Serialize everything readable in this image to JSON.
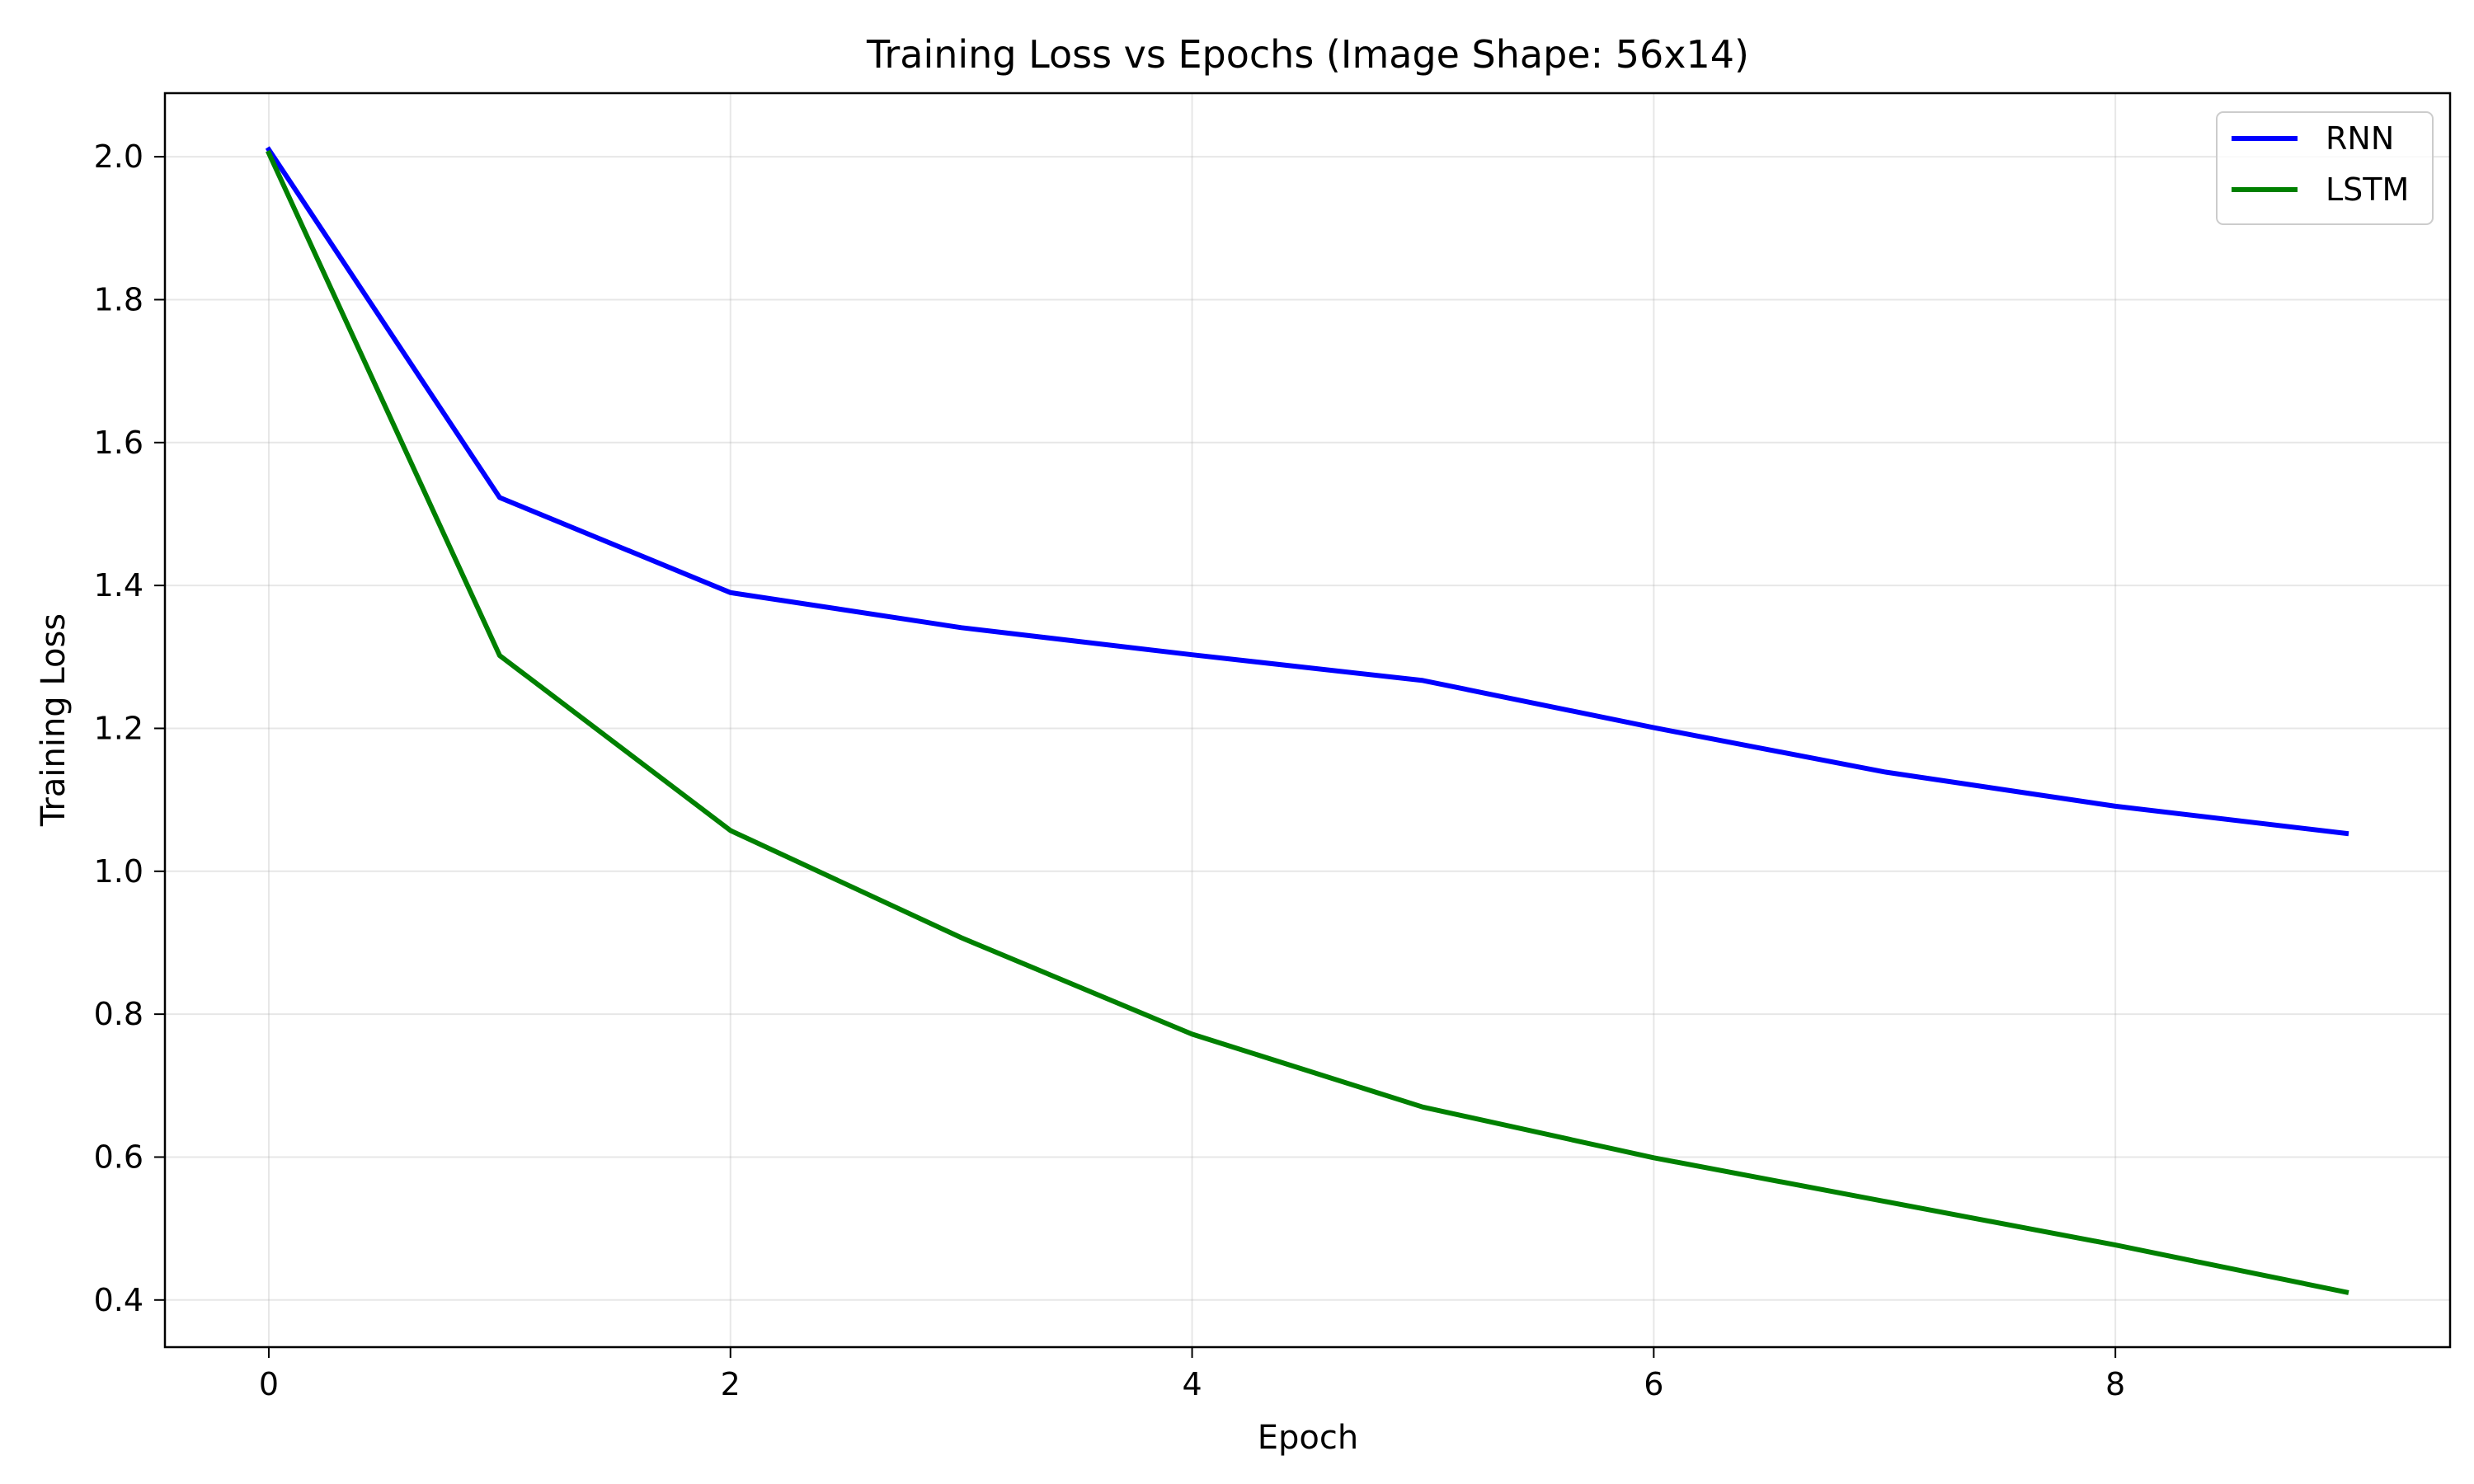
{
  "chart_data": {
    "type": "line",
    "title": "Training Loss vs Epochs (Image Shape: 56x14)",
    "xlabel": "Epoch",
    "ylabel": "Training Loss",
    "x": [
      0,
      1,
      2,
      3,
      4,
      5,
      6,
      7,
      8,
      9
    ],
    "series": [
      {
        "name": "RNN",
        "color": "#0000ff",
        "values": [
          2.01,
          1.523,
          1.39,
          1.341,
          1.303,
          1.267,
          1.201,
          1.139,
          1.091,
          1.053
        ]
      },
      {
        "name": "LSTM",
        "color": "#008000",
        "values": [
          2.005,
          1.302,
          1.057,
          0.907,
          0.772,
          0.67,
          0.599,
          0.538,
          0.477,
          0.411
        ]
      }
    ],
    "xlim": [
      -0.45,
      9.45
    ],
    "ylim": [
      0.334,
      2.089
    ],
    "xticks": [
      0,
      2,
      4,
      6,
      8
    ],
    "xtick_labels": [
      "0",
      "2",
      "4",
      "6",
      "8"
    ],
    "yticks": [
      0.4,
      0.6,
      0.8,
      1.0,
      1.2,
      1.4,
      1.6,
      1.8,
      2.0
    ],
    "ytick_labels": [
      "0.4",
      "0.6",
      "0.8",
      "1.0",
      "1.2",
      "1.4",
      "1.6",
      "1.8",
      "2.0"
    ],
    "grid": true,
    "legend_position": "top-right"
  }
}
